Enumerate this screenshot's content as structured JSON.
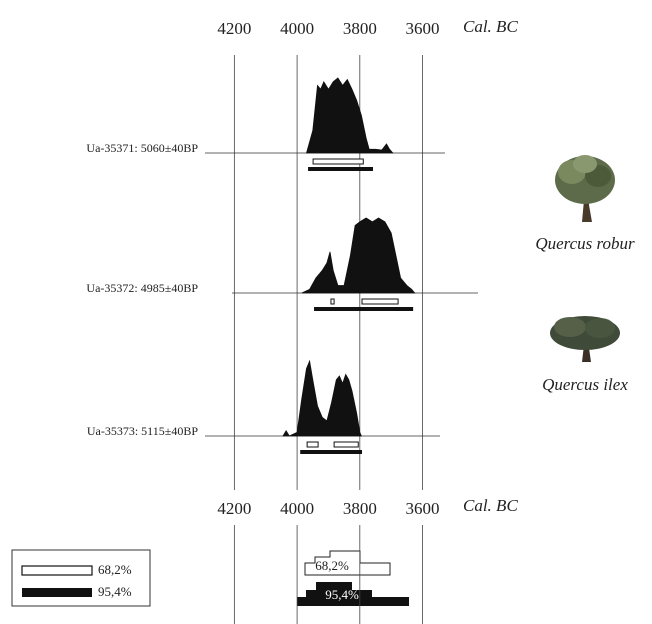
{
  "chart_data": {
    "type": "calibration",
    "x_label": "Cal. BC",
    "xlim": [
      4300,
      3420
    ],
    "ylim": [
      0,
      1
    ],
    "xticks": [
      4200,
      4000,
      3800,
      3600
    ],
    "samples": [
      {
        "name": "Ua-35371: 5060±40BP",
        "x": [
          3970,
          3950,
          3935,
          3925,
          3915,
          3900,
          3885,
          3870,
          3855,
          3840,
          3825,
          3810,
          3795,
          3780,
          3770,
          3750,
          3730,
          3715,
          3705,
          3695
        ],
        "values": [
          0,
          0.3,
          0.9,
          0.85,
          0.95,
          0.85,
          0.95,
          1.0,
          0.9,
          0.98,
          0.85,
          0.7,
          0.5,
          0.2,
          0.05,
          0.05,
          0.04,
          0.12,
          0.05,
          0
        ],
        "ranges_68": [
          [
            3949,
            3789
          ]
        ],
        "ranges_95": [
          [
            3965,
            3758
          ]
        ]
      },
      {
        "name": "Ua-35372: 4985±40BP",
        "x": [
          3985,
          3960,
          3940,
          3920,
          3905,
          3895,
          3885,
          3870,
          3850,
          3830,
          3815,
          3800,
          3780,
          3760,
          3740,
          3720,
          3700,
          3685,
          3670,
          3650,
          3635,
          3625
        ],
        "values": [
          0,
          0.05,
          0.2,
          0.3,
          0.4,
          0.55,
          0.3,
          0.1,
          0.1,
          0.5,
          0.9,
          0.95,
          1.0,
          0.95,
          1.0,
          0.95,
          0.8,
          0.5,
          0.2,
          0.1,
          0.05,
          0
        ],
        "ranges_68": [
          [
            3892,
            3882
          ],
          [
            3793,
            3678
          ]
        ],
        "ranges_95": [
          [
            3946,
            3630
          ]
        ]
      },
      {
        "name": "Ua-35373: 5115±40BP",
        "x": [
          4045,
          4035,
          4025,
          4000,
          3985,
          3970,
          3960,
          3950,
          3935,
          3920,
          3905,
          3890,
          3875,
          3865,
          3855,
          3845,
          3835,
          3825,
          3810,
          3800,
          3795
        ],
        "values": [
          0,
          0.07,
          0,
          0.05,
          0.5,
          0.9,
          1.0,
          0.75,
          0.4,
          0.25,
          0.2,
          0.45,
          0.75,
          0.8,
          0.7,
          0.82,
          0.75,
          0.6,
          0.3,
          0.05,
          0
        ],
        "ranges_68": [
          [
            3968,
            3933
          ],
          [
            3882,
            3805
          ]
        ],
        "ranges_95": [
          [
            3990,
            3793
          ]
        ]
      }
    ],
    "legend": [
      "68,2%",
      "95,4%"
    ],
    "annotations": [
      "Quercus robur",
      "Quercus ilex"
    ]
  }
}
